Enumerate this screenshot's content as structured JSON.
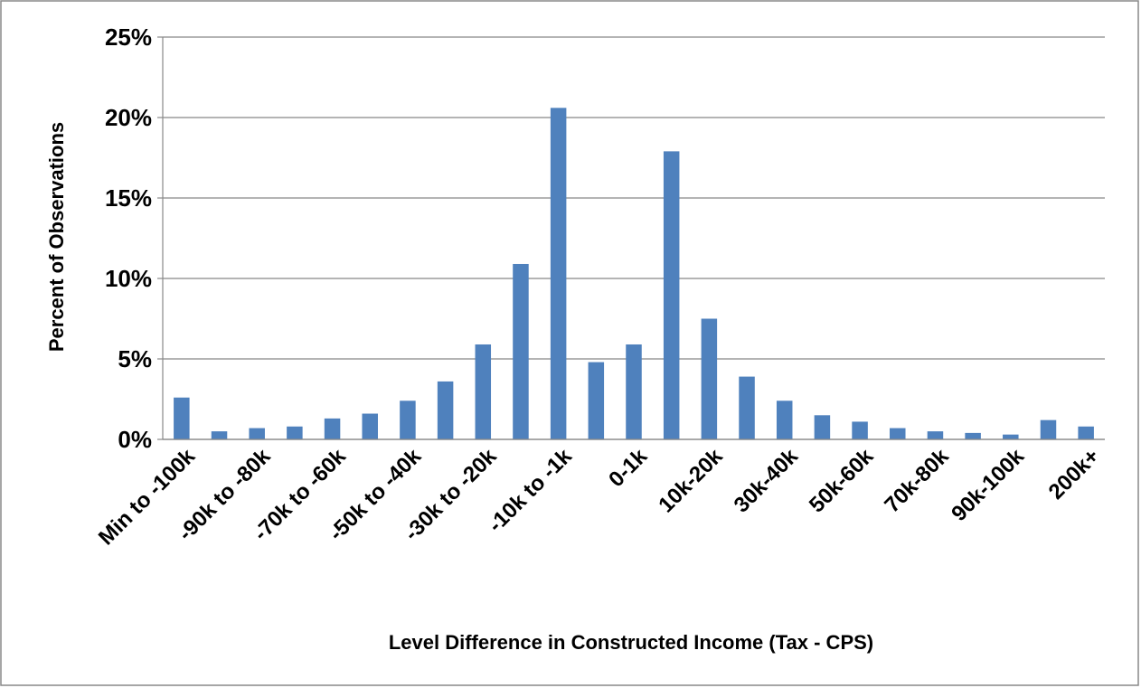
{
  "chart_data": {
    "type": "bar",
    "x_label": "Level Difference in Constructed Income (Tax - CPS)",
    "y_label": "Percent of Observations",
    "categories": [
      "Min to -100k",
      null,
      "-90k to -80k",
      null,
      "-70k to -60k",
      null,
      "-50k to -40k",
      null,
      "-30k to -20k",
      null,
      "-10k to -1k",
      null,
      "0-1k",
      null,
      "10k-20k",
      null,
      "30k-40k",
      null,
      "50k-60k",
      null,
      "70k-80k",
      null,
      "90k-100k",
      null,
      "200k+"
    ],
    "values": [
      2.6,
      0.5,
      0.7,
      0.8,
      1.3,
      1.6,
      2.4,
      3.6,
      5.9,
      10.9,
      20.6,
      4.8,
      5.9,
      17.9,
      7.5,
      3.9,
      2.4,
      1.5,
      1.1,
      0.7,
      0.5,
      0.4,
      0.3,
      1.2,
      0.8
    ],
    "color": "#4f81bd",
    "ylim": [
      0,
      25
    ],
    "yticks": [
      {
        "value": 0,
        "label": "0%"
      },
      {
        "value": 5,
        "label": "5%"
      },
      {
        "value": 10,
        "label": "10%"
      },
      {
        "value": 15,
        "label": "15%"
      },
      {
        "value": 20,
        "label": "20%"
      },
      {
        "value": 25,
        "label": "25%"
      }
    ],
    "grid": true
  }
}
